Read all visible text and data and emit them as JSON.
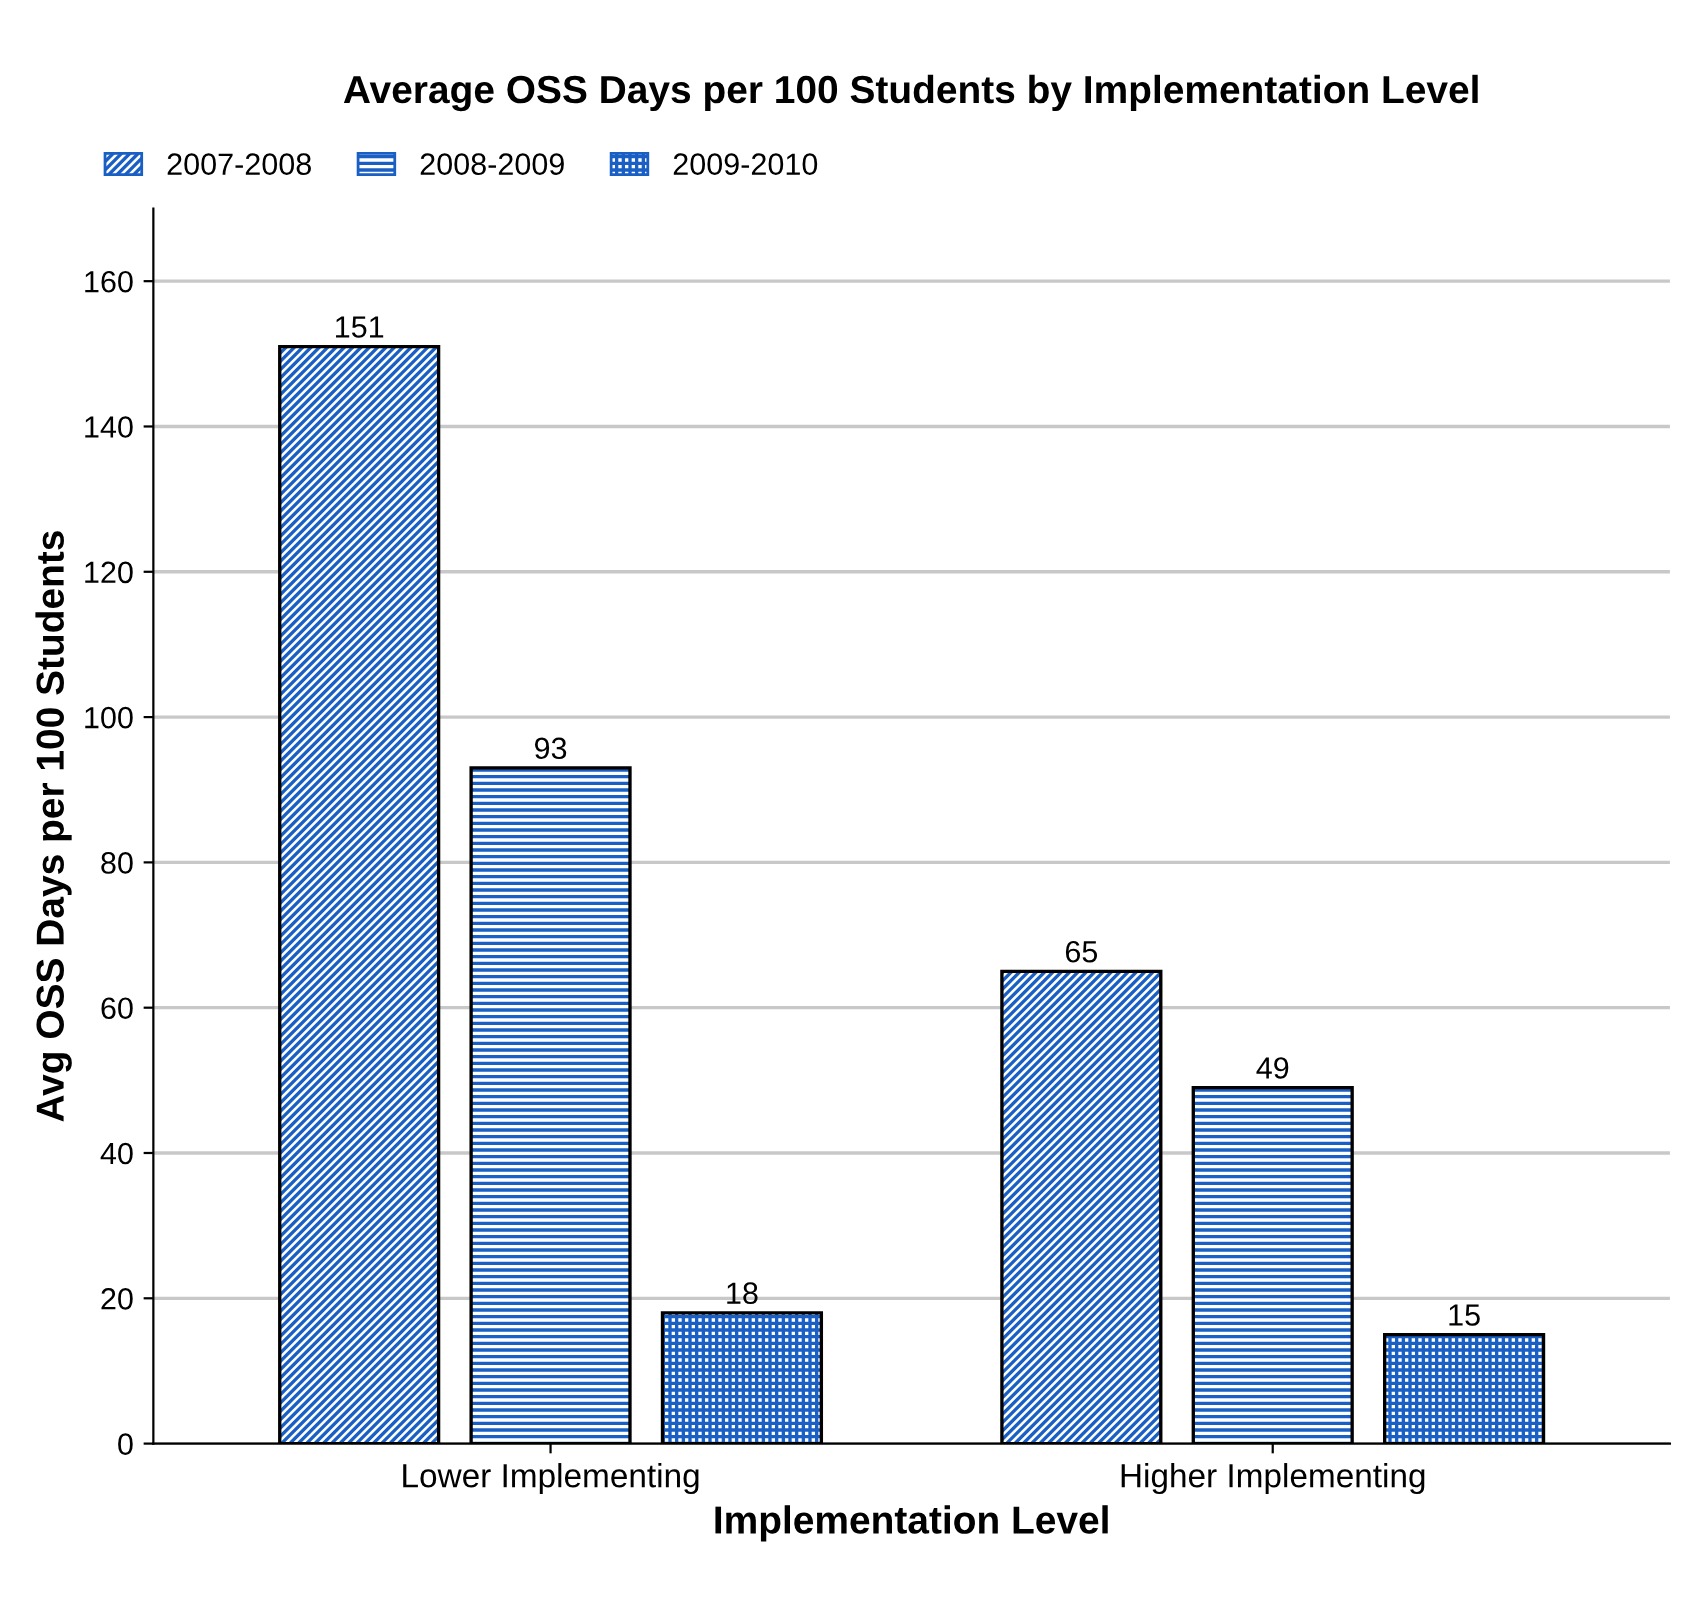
{
  "chart_data": {
    "type": "bar",
    "title": "Average OSS Days per 100 Students by Implementation Level",
    "xlabel": "Implementation Level",
    "ylabel": "Avg OSS Days per 100 Students",
    "categories": [
      "Lower Implementing",
      "Higher Implementing"
    ],
    "series": [
      {
        "name": "2007-2008",
        "color": "#1a5fc4",
        "values": [
          151,
          65
        ]
      },
      {
        "name": "2008-2009",
        "color": "#1a5fc4",
        "values": [
          93,
          49
        ]
      },
      {
        "name": "2009-2010",
        "color": "#1a5fc4",
        "values": [
          18,
          15
        ]
      }
    ],
    "ylim": [
      0,
      170
    ],
    "yticks": [
      0,
      20,
      40,
      60,
      80,
      100,
      120,
      140,
      160
    ],
    "grid": "y",
    "legend": "top left",
    "data_labels": true
  }
}
